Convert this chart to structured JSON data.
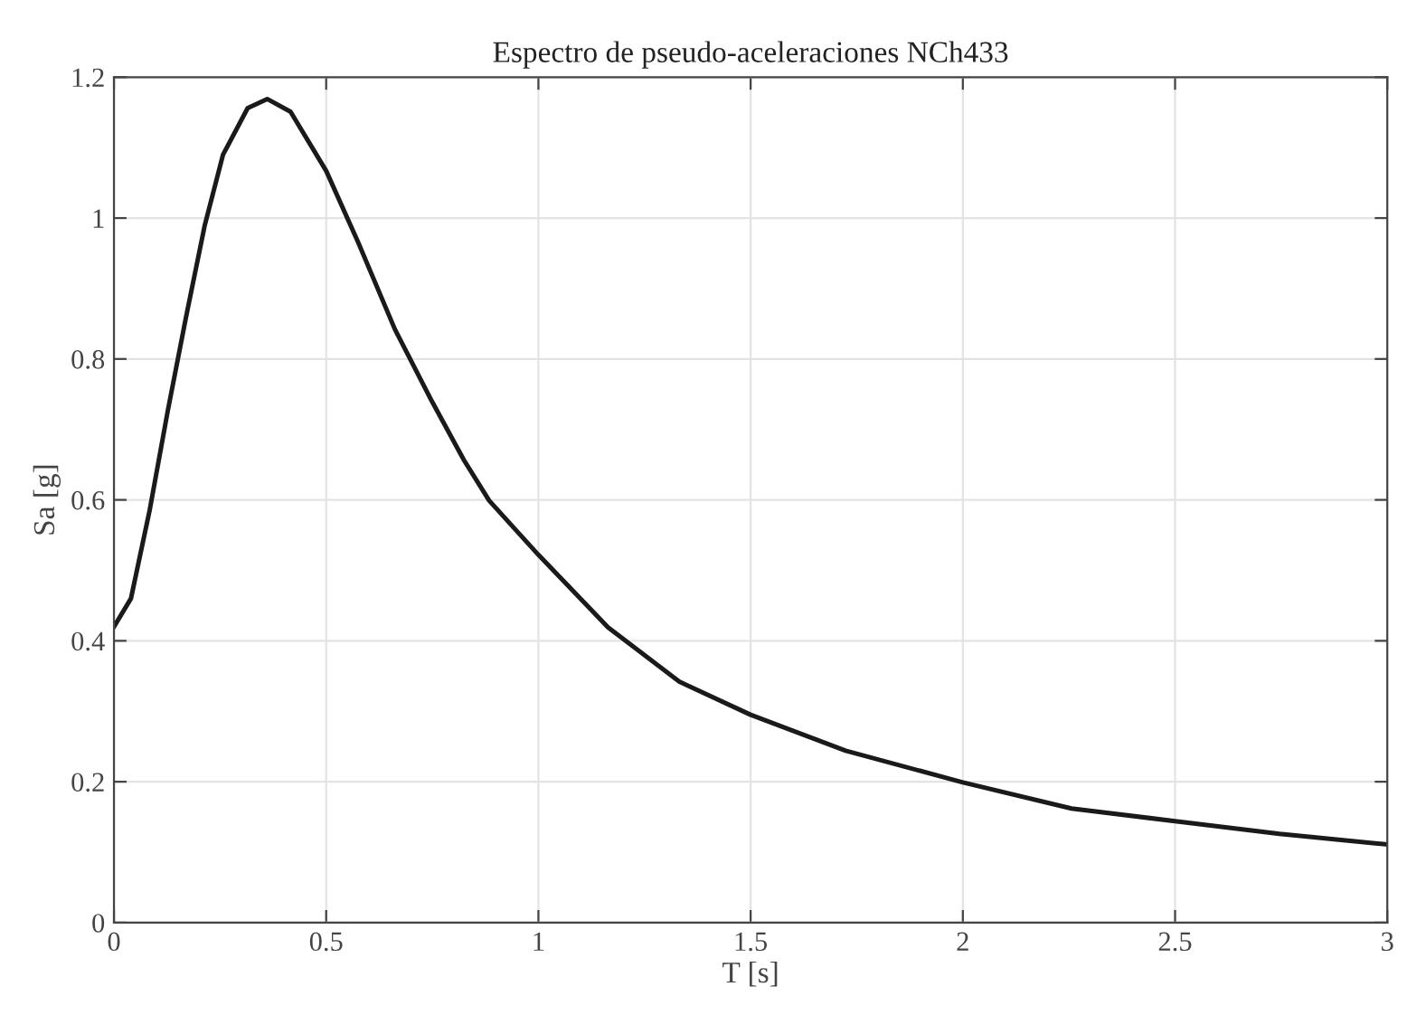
{
  "chart_data": {
    "type": "line",
    "title": "Espectro de pseudo-aceleraciones NCh433",
    "xlabel": "T [s]",
    "ylabel": "Sa [g]",
    "series": [
      {
        "color": "#1a1a1a",
        "x": [
          0,
          0.04,
          0.084,
          0.127,
          0.17,
          0.214,
          0.257,
          0.315,
          0.361,
          0.416,
          0.5,
          0.575,
          0.662,
          0.749,
          0.825,
          0.884,
          1.0,
          1.164,
          1.332,
          1.5,
          1.724,
          2.0,
          2.256,
          2.5,
          2.746,
          3.0
        ],
        "values": [
          0.42,
          0.46,
          0.585,
          0.727,
          0.86,
          0.99,
          1.09,
          1.156,
          1.169,
          1.151,
          1.067,
          0.966,
          0.842,
          0.74,
          0.656,
          0.599,
          0.522,
          0.419,
          0.342,
          0.295,
          0.244,
          0.199,
          0.162,
          0.144,
          0.126,
          0.111
        ]
      }
    ],
    "xlim": [
      0,
      3
    ],
    "ylim": [
      0,
      1.2
    ],
    "xticks": [
      0,
      0.5,
      1,
      1.5,
      2,
      2.5,
      3
    ],
    "yticks": [
      0,
      0.2,
      0.4,
      0.6,
      0.8,
      1,
      1.2
    ],
    "grid": true,
    "marker": "none",
    "line_style": "solid"
  }
}
